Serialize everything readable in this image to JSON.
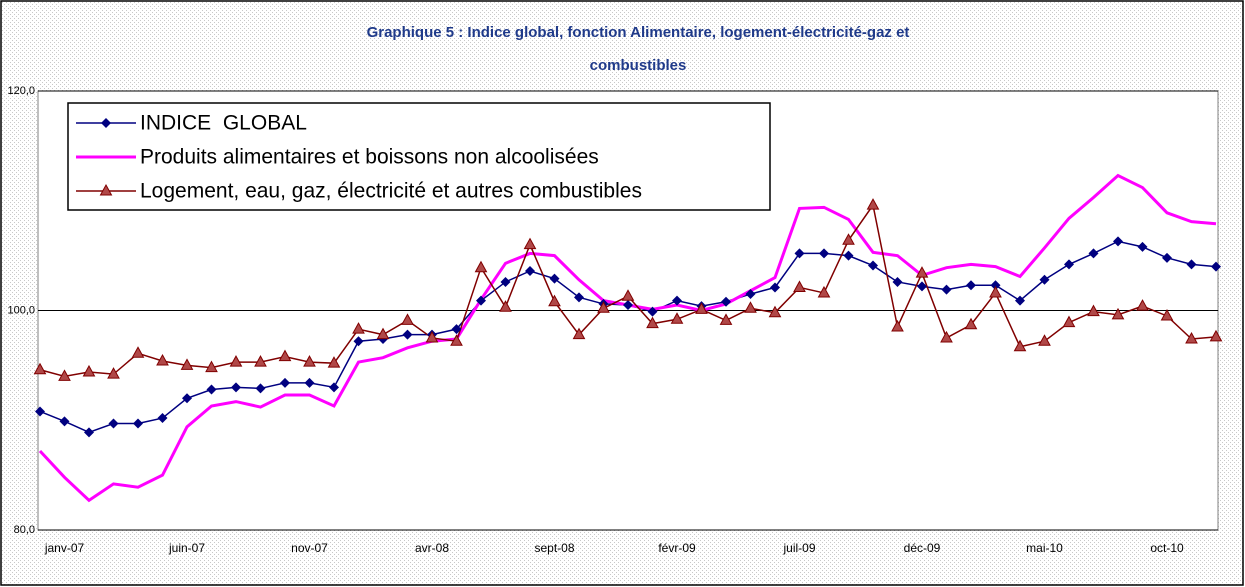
{
  "chart_data": {
    "type": "line",
    "title": [
      "Graphique 5 : Indice global, fonction Alimentaire, logement-électricité-gaz et",
      "combustibles"
    ],
    "categories": [
      null,
      "janv-07",
      null,
      null,
      null,
      null,
      "juin-07",
      null,
      null,
      null,
      null,
      "nov-07",
      null,
      null,
      null,
      null,
      "avr-08",
      null,
      null,
      null,
      null,
      "sept-08",
      null,
      null,
      null,
      null,
      "févr-09",
      null,
      null,
      null,
      null,
      "juil-09",
      null,
      null,
      null,
      null,
      "déc-09",
      null,
      null,
      null,
      null,
      "mai-10",
      null,
      null,
      null,
      null,
      "oct-10",
      null,
      null
    ],
    "series": [
      {
        "name": "INDICE  GLOBAL",
        "color": "#000080",
        "marker": "diamond",
        "values": [
          90.8,
          89.9,
          88.9,
          89.7,
          89.7,
          90.2,
          92.0,
          92.8,
          93.0,
          92.9,
          93.4,
          93.4,
          93.0,
          97.2,
          97.4,
          97.8,
          97.8,
          98.3,
          100.9,
          102.6,
          103.6,
          102.9,
          101.2,
          100.6,
          100.5,
          99.9,
          100.9,
          100.4,
          100.8,
          101.5,
          102.1,
          105.2,
          105.2,
          105.0,
          104.1,
          102.6,
          102.2,
          101.9,
          102.3,
          102.3,
          100.9,
          102.8,
          104.2,
          105.2,
          106.3,
          105.8,
          104.8,
          104.2,
          104.0
        ]
      },
      {
        "name": "Produits alimentaires et boissons non alcoolisées",
        "color": "#ff00ff",
        "marker": "none",
        "values": [
          87.2,
          84.8,
          82.7,
          84.2,
          83.9,
          85.0,
          89.4,
          91.3,
          91.7,
          91.2,
          92.3,
          92.3,
          91.3,
          95.3,
          95.7,
          96.6,
          97.2,
          97.4,
          101.0,
          104.3,
          105.2,
          105.0,
          102.8,
          100.9,
          100.5,
          100.1,
          100.5,
          100.0,
          100.6,
          101.8,
          103.0,
          109.3,
          109.4,
          108.3,
          105.3,
          105.0,
          103.2,
          103.9,
          104.2,
          104.0,
          103.1,
          105.7,
          108.4,
          110.3,
          112.3,
          111.2,
          108.9,
          108.1,
          107.9
        ]
      },
      {
        "name": "Logement, eau, gaz, électricité et autres combustibles",
        "color": "#800000",
        "marker": "triangle",
        "values": [
          94.6,
          94.0,
          94.4,
          94.2,
          96.1,
          95.4,
          95.0,
          94.8,
          95.3,
          95.3,
          95.8,
          95.3,
          95.2,
          98.3,
          97.8,
          99.1,
          97.5,
          97.2,
          103.9,
          100.3,
          106.0,
          100.8,
          97.8,
          100.2,
          101.3,
          98.8,
          99.2,
          100.1,
          99.1,
          100.2,
          99.8,
          102.1,
          101.6,
          106.4,
          109.6,
          98.5,
          103.4,
          97.5,
          98.7,
          101.6,
          96.7,
          97.2,
          98.9,
          99.9,
          99.6,
          100.4,
          99.5,
          97.4,
          97.6
        ]
      }
    ],
    "ylim": [
      80,
      120
    ],
    "yticks": [
      {
        "value": 80,
        "label": "80,0"
      },
      {
        "value": 100,
        "label": "100,0"
      },
      {
        "value": 120,
        "label": "120,0"
      }
    ],
    "grid": true,
    "legend": "top-left"
  }
}
